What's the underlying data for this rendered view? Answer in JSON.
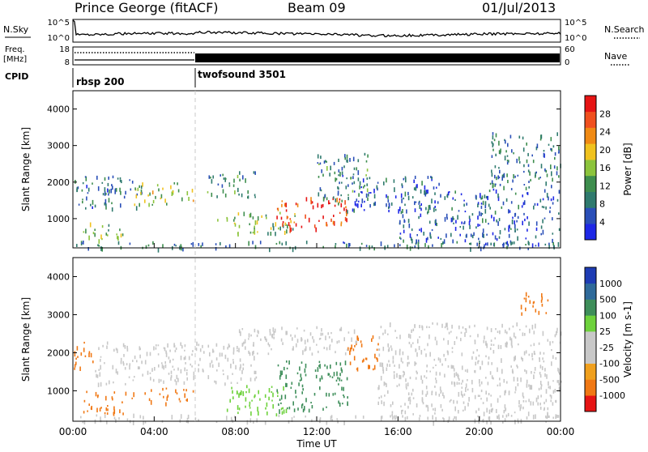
{
  "header": {
    "station": "Prince George (fitACF)",
    "beam": "Beam 09",
    "date": "01/Jul/2013"
  },
  "top_panels": {
    "nsky_label": "N.Sky",
    "nsky_ticks": [
      "10^5",
      "10^0"
    ],
    "nsearch_label": "N.Search",
    "nsearch_ticks": [
      "10^5",
      "10^0"
    ],
    "freq_label_1": "Freq.",
    "freq_label_2": "[MHz]",
    "freq_ticks": [
      "18",
      "8"
    ],
    "nave_label": "Nave",
    "nave_ticks": [
      "60",
      "0"
    ],
    "cpid_label": "CPID",
    "cpid_segments": [
      {
        "name": "rbsp 200",
        "start_hour": 0,
        "end_hour": 6
      },
      {
        "name": "twofsound 3501",
        "start_hour": 6,
        "end_hour": 24
      }
    ]
  },
  "colors": {
    "power": [
      "#1e28e6",
      "#2a4fb8",
      "#2f7a6e",
      "#3e8e4e",
      "#8cc43c",
      "#f0c21e",
      "#f08a14",
      "#f0501e",
      "#e61414"
    ],
    "velocity": [
      "#1e3cb4",
      "#2f6a9a",
      "#3e8e5a",
      "#6ed23c",
      "#c8c8c8",
      "#c8c8c8",
      "#f0a01e",
      "#f07814",
      "#e61414"
    ]
  },
  "chart_data": [
    {
      "type": "heatmap",
      "name": "Power",
      "ylabel": "Slant Range [km]",
      "yticks": [
        "1000",
        "2000",
        "3000",
        "4000"
      ],
      "ylim": [
        200,
        4500
      ],
      "xlim": [
        0,
        24
      ],
      "colorbar_label": "Power [dB]",
      "colorbar_ticks": [
        "4",
        "8",
        "12",
        "16",
        "20",
        "24",
        "28"
      ],
      "colorbar_range": [
        0,
        30
      ],
      "regions": [
        {
          "x": [
            0.0,
            3.5
          ],
          "y": [
            1300,
            2200
          ],
          "value": 8
        },
        {
          "x": [
            0.5,
            2.5
          ],
          "y": [
            400,
            900
          ],
          "value": 14
        },
        {
          "x": [
            3.0,
            6.0
          ],
          "y": [
            1400,
            2000
          ],
          "value": 16
        },
        {
          "x": [
            6.5,
            9.0
          ],
          "y": [
            1600,
            2300
          ],
          "value": 10
        },
        {
          "x": [
            7.0,
            11.0
          ],
          "y": [
            600,
            1200
          ],
          "value": 14
        },
        {
          "x": [
            10.0,
            13.5
          ],
          "y": [
            700,
            1600
          ],
          "value": 26
        },
        {
          "x": [
            12.0,
            14.5
          ],
          "y": [
            1500,
            2800
          ],
          "value": 10
        },
        {
          "x": [
            13.0,
            18.0
          ],
          "y": [
            1200,
            2200
          ],
          "value": 6
        },
        {
          "x": [
            16.0,
            24.0
          ],
          "y": [
            300,
            1800
          ],
          "value": 6
        },
        {
          "x": [
            20.5,
            24.0
          ],
          "y": [
            1800,
            3400
          ],
          "value": 8
        },
        {
          "x": [
            0.0,
            24.0
          ],
          "y": [
            200,
            400
          ],
          "value": 8
        }
      ]
    },
    {
      "type": "heatmap",
      "name": "Velocity",
      "ylabel": "Slant Range [km]",
      "yticks": [
        "1000",
        "2000",
        "3000",
        "4000"
      ],
      "ylim": [
        200,
        4500
      ],
      "xlim": [
        0,
        24
      ],
      "xlabel": "Time UT",
      "xticks": [
        "00:00",
        "04:00",
        "08:00",
        "12:00",
        "16:00",
        "20:00",
        "00:00"
      ],
      "colorbar_label": "Velocity [m s-1]",
      "colorbar_ticks": [
        "1000",
        "500",
        "100",
        "25",
        "-25",
        "-100",
        "-500",
        "-1000"
      ],
      "regions": [
        {
          "x": [
            0.0,
            1.0
          ],
          "y": [
            1500,
            2300
          ],
          "value": -300
        },
        {
          "x": [
            0.5,
            3.0
          ],
          "y": [
            400,
            1000
          ],
          "value": -300
        },
        {
          "x": [
            1.0,
            9.0
          ],
          "y": [
            1200,
            2300
          ],
          "value": 0
        },
        {
          "x": [
            3.5,
            6.0
          ],
          "y": [
            700,
            1100
          ],
          "value": -150
        },
        {
          "x": [
            7.5,
            10.5
          ],
          "y": [
            400,
            1200
          ],
          "value": 80
        },
        {
          "x": [
            10.0,
            13.5
          ],
          "y": [
            500,
            1800
          ],
          "value": 400
        },
        {
          "x": [
            13.5,
            15.0
          ],
          "y": [
            1500,
            2500
          ],
          "value": -300
        },
        {
          "x": [
            8.0,
            14.0
          ],
          "y": [
            2000,
            2700
          ],
          "value": 0
        },
        {
          "x": [
            15.0,
            24.0
          ],
          "y": [
            300,
            2800
          ],
          "value": 0
        },
        {
          "x": [
            22.0,
            23.5
          ],
          "y": [
            3000,
            3600
          ],
          "value": -300
        },
        {
          "x": [
            0.0,
            24.0
          ],
          "y": [
            200,
            400
          ],
          "value": 10
        }
      ]
    }
  ]
}
